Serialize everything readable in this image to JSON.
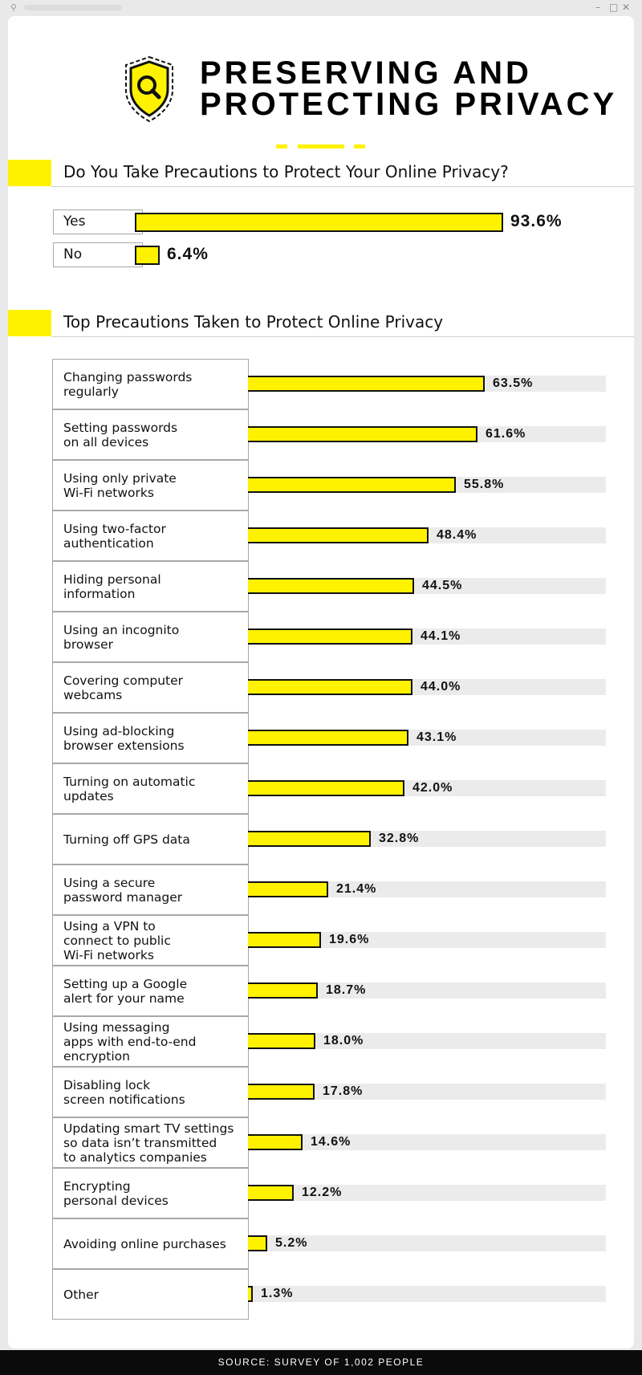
{
  "title_lines": [
    "PRESERVING AND",
    "PROTECTING PRIVACY"
  ],
  "colors": {
    "accent": "#fff200",
    "ink": "#111111",
    "track": "#ebebeb"
  },
  "section1_title": "Do You Take Precautions to Protect Your Online Privacy?",
  "section2_title": "Top Precautions Taken to Protect Online Privacy",
  "source": "SOURCE: SURVEY OF 1,002 PEOPLE",
  "chart_data": [
    {
      "type": "bar",
      "title": "Do You Take Precautions to Protect Your Online Privacy?",
      "categories": [
        "Yes",
        "No"
      ],
      "values": [
        93.6,
        6.4
      ],
      "value_labels": [
        "93.6%",
        "6.4%"
      ],
      "unit": "%"
    },
    {
      "type": "bar",
      "title": "Top Precautions Taken to Protect Online Privacy",
      "categories": [
        "Changing passwords\nregularly",
        "Setting passwords\non all devices",
        "Using only private\nWi-Fi networks",
        "Using two-factor\nauthentication",
        "Hiding personal\ninformation",
        "Using an incognito\nbrowser",
        "Covering computer\nwebcams",
        "Using ad-blocking\nbrowser extensions",
        "Turning on automatic\nupdates",
        "Turning off GPS data",
        "Using a secure\npassword manager",
        "Using a VPN to\nconnect to public\nWi-Fi networks",
        "Setting up a Google\nalert for your name",
        "Using messaging\napps with end-to-end\nencryption",
        "Disabling lock\nscreen notifications",
        "Updating smart TV settings\nso data isn’t transmitted\nto analytics companies",
        "Encrypting\npersonal devices",
        "Avoiding online purchases",
        "Other"
      ],
      "values": [
        63.5,
        61.6,
        55.8,
        48.4,
        44.5,
        44.1,
        44.0,
        43.1,
        42.0,
        32.8,
        21.4,
        19.6,
        18.7,
        18.0,
        17.8,
        14.6,
        12.2,
        5.2,
        1.3
      ],
      "value_labels": [
        "63.5%",
        "61.6%",
        "55.8%",
        "48.4%",
        "44.5%",
        "44.1%",
        "44.0%",
        "43.1%",
        "42.0%",
        "32.8%",
        "21.4%",
        "19.6%",
        "18.7%",
        "18.0%",
        "17.8%",
        "14.6%",
        "12.2%",
        "5.2%",
        "1.3%"
      ],
      "unit": "%"
    }
  ]
}
